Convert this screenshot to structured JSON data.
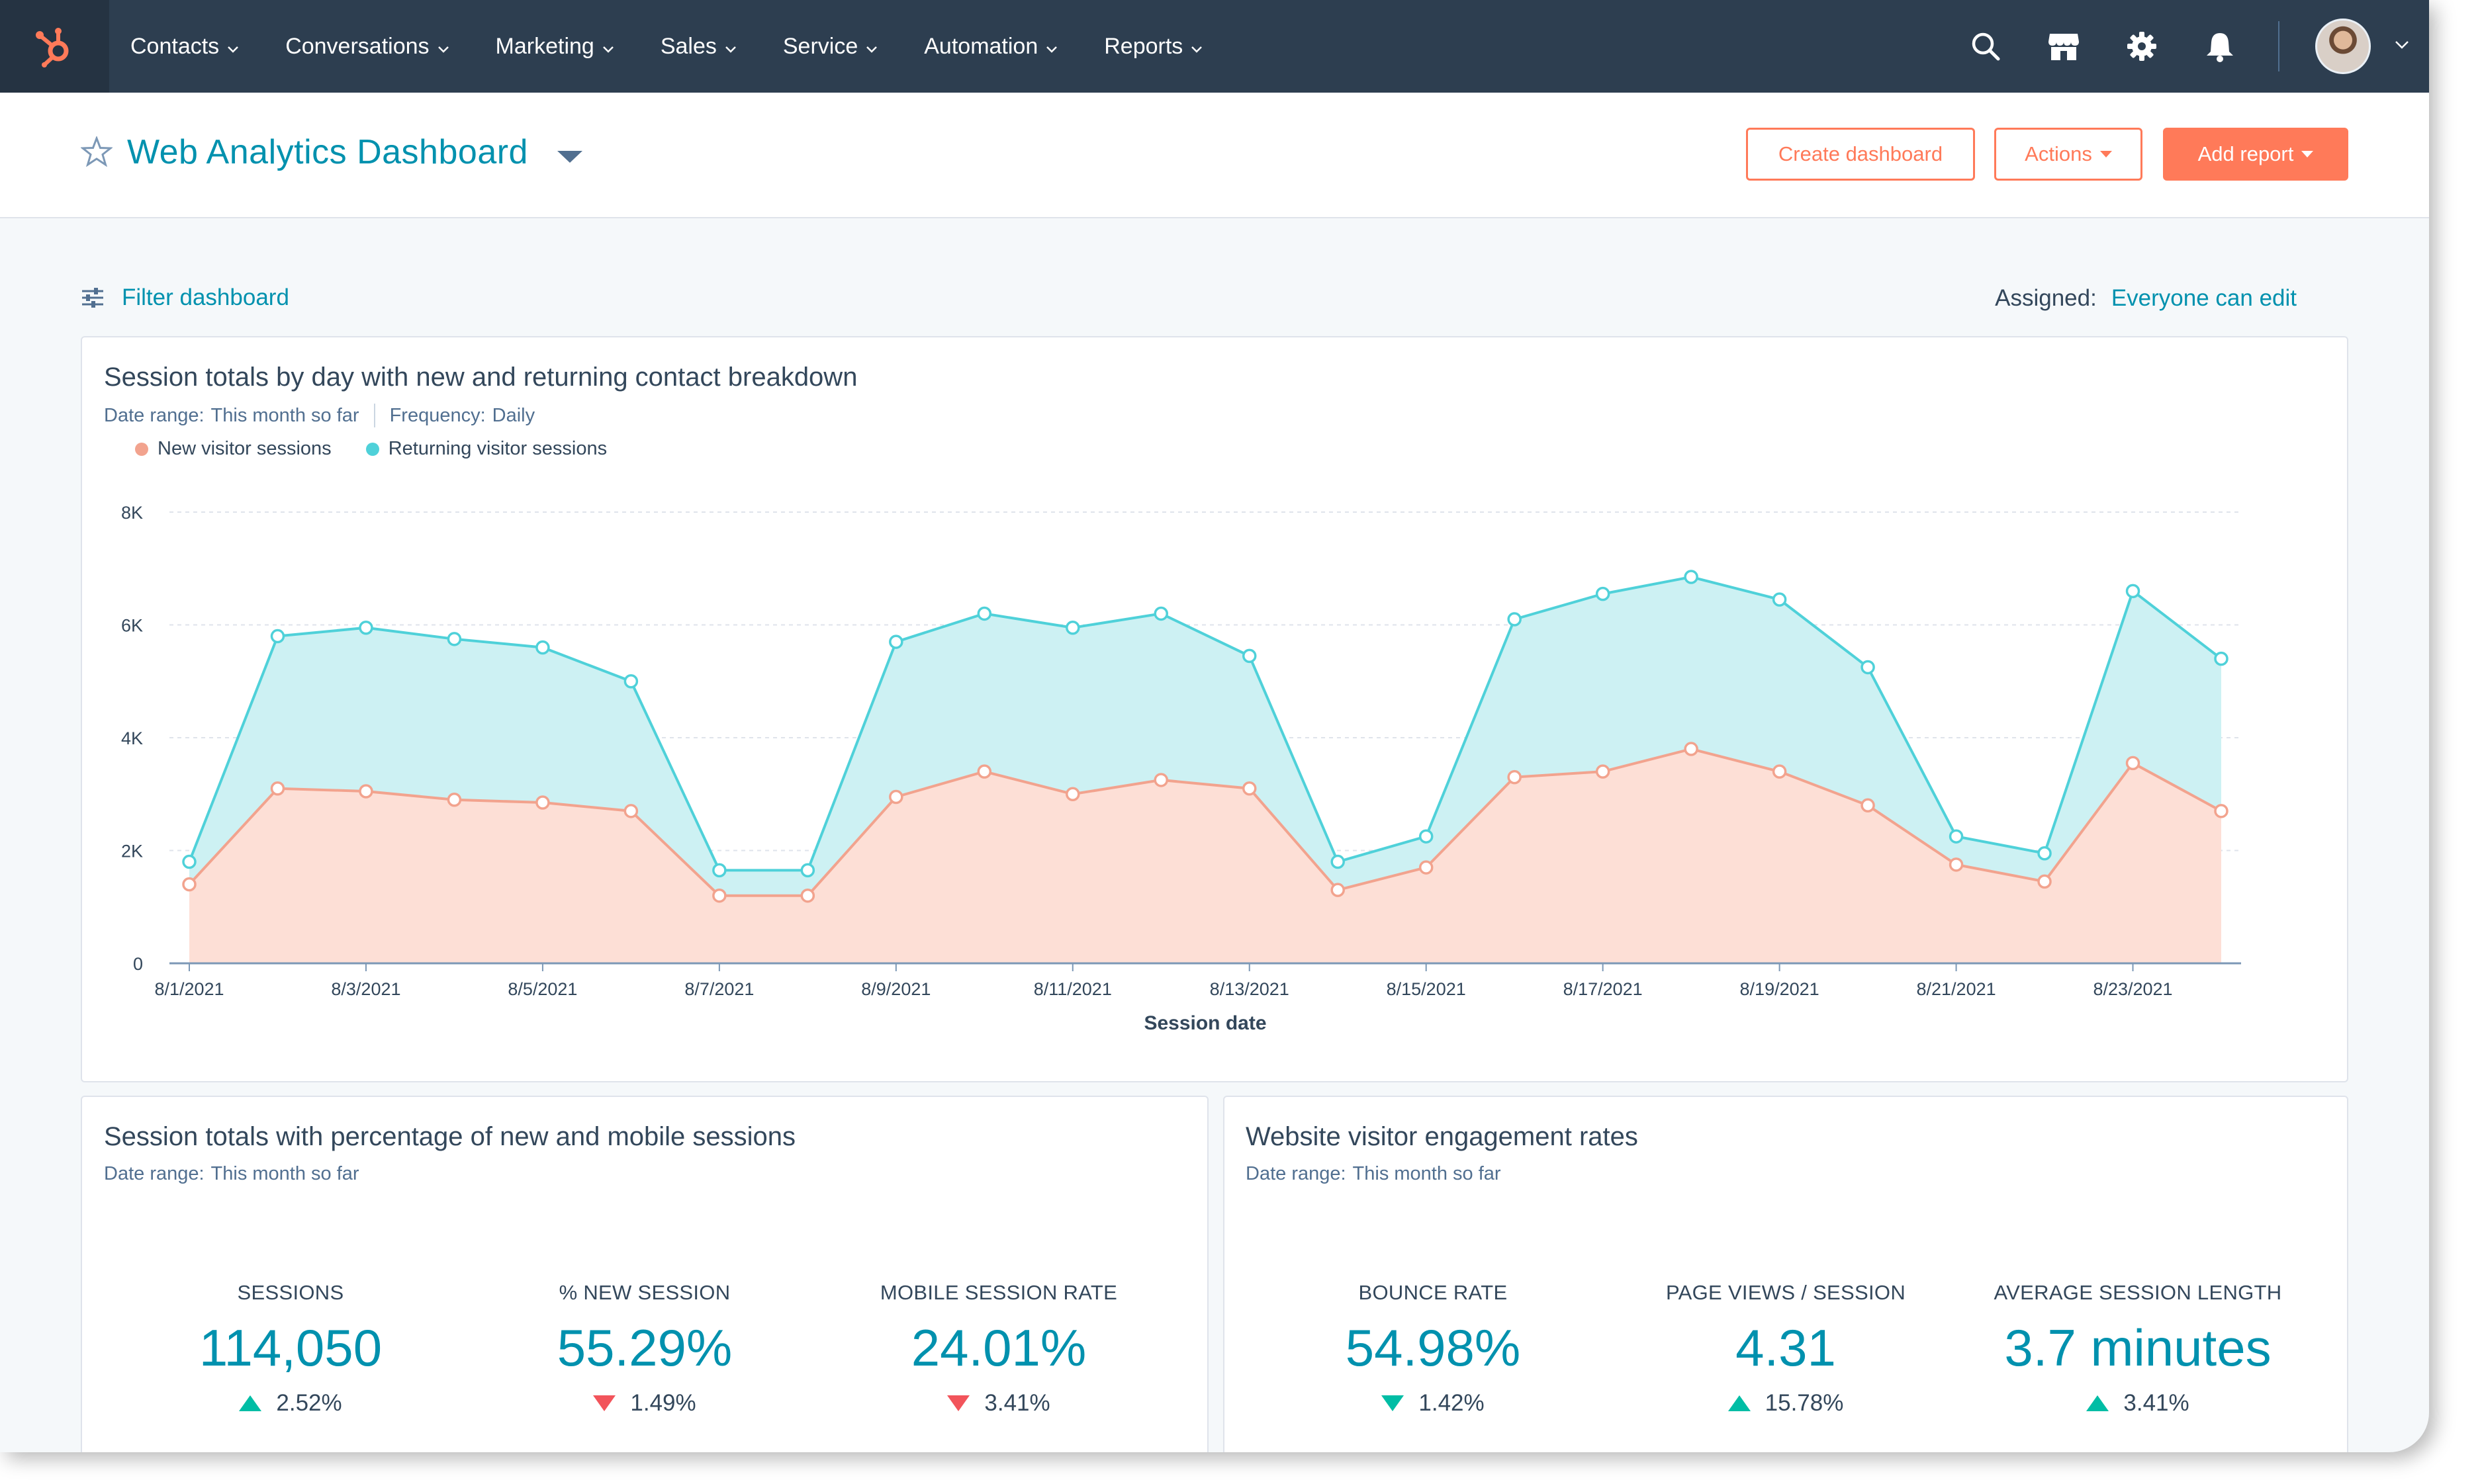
{
  "nav": {
    "items": [
      {
        "label": "Contacts"
      },
      {
        "label": "Conversations"
      },
      {
        "label": "Marketing"
      },
      {
        "label": "Sales"
      },
      {
        "label": "Service"
      },
      {
        "label": "Automation"
      },
      {
        "label": "Reports"
      }
    ]
  },
  "header": {
    "title": "Web Analytics Dashboard",
    "create_dashboard": "Create dashboard",
    "actions": "Actions",
    "add_report": "Add report"
  },
  "filter": {
    "label": "Filter dashboard",
    "assigned_label": "Assigned:",
    "assigned_value": "Everyone can edit"
  },
  "colors": {
    "accent": "#0091ae",
    "brand_orange": "#ff7a59",
    "nav_bg": "#2d3e50",
    "new_series": "#f2a38e",
    "returning_series": "#4fd1d9",
    "up": "#00bda5",
    "down": "#f2545b"
  },
  "main_chart": {
    "title": "Session totals by day with new and returning contact breakdown",
    "date_range_label": "Date range:",
    "date_range_value": "This month so far",
    "frequency_label": "Frequency:",
    "frequency_value": "Daily"
  },
  "chart_data": {
    "type": "area",
    "stacked": true,
    "xlabel": "Session date",
    "ylabel": "",
    "ylim": [
      0,
      8000
    ],
    "yticks": [
      {
        "value": 0,
        "label": "0"
      },
      {
        "value": 2000,
        "label": "2K"
      },
      {
        "value": 4000,
        "label": "4K"
      },
      {
        "value": 6000,
        "label": "6K"
      },
      {
        "value": 8000,
        "label": "8K"
      }
    ],
    "grid": true,
    "legend": "top-left",
    "x": [
      "8/1/2021",
      "8/2/2021",
      "8/3/2021",
      "8/4/2021",
      "8/5/2021",
      "8/6/2021",
      "8/7/2021",
      "8/8/2021",
      "8/9/2021",
      "8/10/2021",
      "8/11/2021",
      "8/12/2021",
      "8/13/2021",
      "8/14/2021",
      "8/15/2021",
      "8/16/2021",
      "8/17/2021",
      "8/18/2021",
      "8/19/2021",
      "8/20/2021",
      "8/21/2021",
      "8/22/2021",
      "8/23/2021",
      "8/24/2021"
    ],
    "xtick_labels": [
      "8/1/2021",
      "8/3/2021",
      "8/5/2021",
      "8/7/2021",
      "8/9/2021",
      "8/11/2021",
      "8/13/2021",
      "8/15/2021",
      "8/17/2021",
      "8/19/2021",
      "8/21/2021",
      "8/23/2021"
    ],
    "series": [
      {
        "name": "New visitor sessions",
        "color": "#f2a38e",
        "values": [
          1400,
          3100,
          3050,
          2900,
          2850,
          2700,
          1200,
          1200,
          2950,
          3400,
          3000,
          3250,
          3100,
          1300,
          1700,
          3300,
          3400,
          3800,
          3400,
          2800,
          1750,
          1450,
          3550,
          2700
        ]
      },
      {
        "name": "Returning visitor sessions",
        "color": "#4fd1d9",
        "values": [
          400,
          2700,
          2900,
          2850,
          2750,
          2300,
          450,
          450,
          2750,
          2800,
          2950,
          2950,
          2350,
          500,
          550,
          2800,
          3150,
          3050,
          3050,
          2450,
          500,
          500,
          3050,
          2700
        ]
      }
    ]
  },
  "kpi_left": {
    "title": "Session totals with percentage of new and mobile sessions",
    "date_range_label": "Date range:",
    "date_range_value": "This month so far",
    "items": [
      {
        "label": "SESSIONS",
        "value": "114,050",
        "change": "2.52%",
        "direction": "up"
      },
      {
        "label": "% NEW SESSION",
        "value": "55.29%",
        "change": "1.49%",
        "direction": "down"
      },
      {
        "label": "MOBILE SESSION RATE",
        "value": "24.01%",
        "change": "3.41%",
        "direction": "down"
      }
    ]
  },
  "kpi_right": {
    "title": "Website visitor engagement rates",
    "date_range_label": "Date range:",
    "date_range_value": "This month so far",
    "items": [
      {
        "label": "BOUNCE RATE",
        "value": "54.98%",
        "change": "1.42%",
        "direction": "down"
      },
      {
        "label": "PAGE VIEWS / SESSION",
        "value": "4.31",
        "change": "15.78%",
        "direction": "up"
      },
      {
        "label": "AVERAGE SESSION LENGTH",
        "value": "3.7 minutes",
        "change": "3.41%",
        "direction": "up"
      }
    ]
  }
}
